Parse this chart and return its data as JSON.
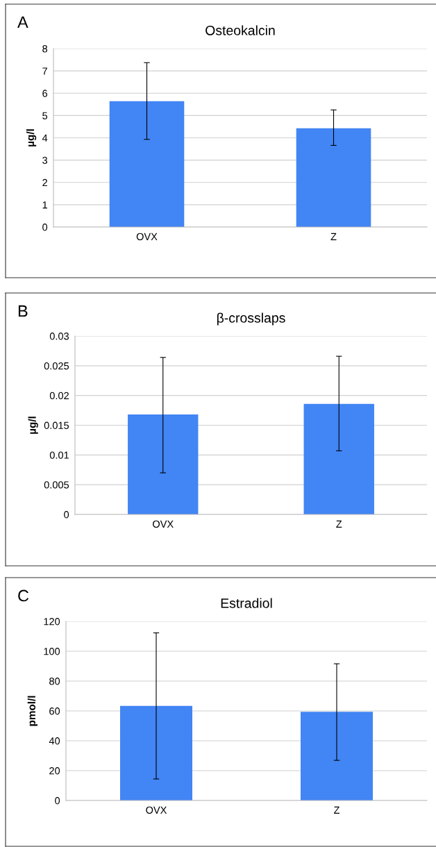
{
  "chart_data": [
    {
      "type": "bar",
      "title": "Osteokalcin",
      "ylabel": "µg/l",
      "annotations": [
        "A"
      ],
      "categories": [
        "OVX",
        "Z"
      ],
      "values": [
        5.64,
        4.43
      ],
      "errors": [
        [
          3.93,
          7.37
        ],
        [
          3.66,
          5.25
        ]
      ],
      "color": "#4285f4",
      "ylim": [
        0,
        8
      ],
      "yticks": [
        0,
        1,
        2,
        3,
        4,
        5,
        6,
        7,
        8
      ],
      "grid": "y"
    },
    {
      "type": "bar",
      "title": "β-crosslaps",
      "ylabel": "µg/l",
      "annotations": [
        "B"
      ],
      "categories": [
        "OVX",
        "Z"
      ],
      "values": [
        0.0168,
        0.0186
      ],
      "errors": [
        [
          0.007,
          0.0264
        ],
        [
          0.0107,
          0.0266
        ]
      ],
      "color": "#4285f4",
      "ylim": [
        0,
        0.03
      ],
      "yticks": [
        0,
        0.005,
        0.01,
        0.015,
        0.02,
        0.025,
        0.03
      ],
      "grid": "y"
    },
    {
      "type": "bar",
      "title": "Estradiol",
      "ylabel": "pmol/l",
      "annotations": [
        "C"
      ],
      "categories": [
        "OVX",
        "Z"
      ],
      "values": [
        63.4,
        59.4
      ],
      "errors": [
        [
          14.4,
          112.3
        ],
        [
          26.9,
          91.6
        ]
      ],
      "color": "#4285f4",
      "ylim": [
        0,
        120
      ],
      "yticks": [
        0,
        20,
        40,
        60,
        80,
        100,
        120
      ],
      "grid": "y"
    }
  ]
}
